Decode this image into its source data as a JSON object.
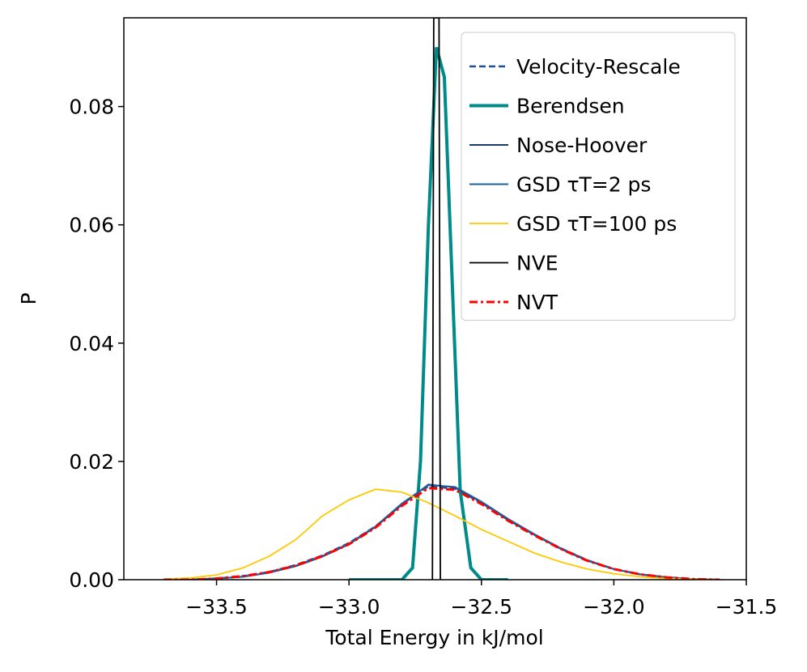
{
  "chart_data": {
    "type": "line",
    "xlabel": "Total Energy in kJ/mol",
    "ylabel": "P",
    "xlim": [
      -33.85,
      -31.5
    ],
    "ylim": [
      0,
      0.095
    ],
    "xticks": [
      {
        "value": -33.5,
        "label": "−33.5"
      },
      {
        "value": -33.0,
        "label": "−33.0"
      },
      {
        "value": -32.5,
        "label": "−32.5"
      },
      {
        "value": -32.0,
        "label": "−32.0"
      },
      {
        "value": -31.5,
        "label": "−31.5"
      }
    ],
    "yticks": [
      {
        "value": 0,
        "label": "0.00"
      },
      0.02,
      0.04,
      0.06,
      0.08
    ],
    "legend": "upper right",
    "series": [
      {
        "name": "Velocity-Rescale",
        "color": "#1f4e9c",
        "dash": "dashed",
        "width": 2.5,
        "x": [
          -33.7,
          -33.6,
          -33.5,
          -33.4,
          -33.3,
          -33.2,
          -33.1,
          -33.0,
          -32.9,
          -32.8,
          -32.7,
          -32.6,
          -32.5,
          -32.4,
          -32.3,
          -32.2,
          -32.1,
          -32.0,
          -31.9,
          -31.8,
          -31.7,
          -31.6
        ],
        "values": [
          0,
          0,
          0.0002,
          0.0006,
          0.0013,
          0.0025,
          0.0041,
          0.0062,
          0.009,
          0.0128,
          0.0158,
          0.0154,
          0.013,
          0.0102,
          0.0076,
          0.0053,
          0.0033,
          0.0018,
          0.0009,
          0.0004,
          0.0001,
          0
        ]
      },
      {
        "name": "Berendsen",
        "color": "#008b8b",
        "dash": "solid",
        "width": 4,
        "x": [
          -33.0,
          -32.8,
          -32.76,
          -32.73,
          -32.7,
          -32.67,
          -32.64,
          -32.61,
          -32.58,
          -32.54,
          -32.5,
          -32.4
        ],
        "values": [
          0,
          0,
          0.002,
          0.02,
          0.06,
          0.09,
          0.085,
          0.05,
          0.015,
          0.002,
          0,
          0
        ]
      },
      {
        "name": "Nose-Hoover",
        "color": "#1a3a6b",
        "dash": "solid",
        "width": 2,
        "x": [
          -33.7,
          -33.6,
          -33.5,
          -33.4,
          -33.3,
          -33.2,
          -33.1,
          -33.0,
          -32.9,
          -32.8,
          -32.7,
          -32.6,
          -32.5,
          -32.4,
          -32.3,
          -32.2,
          -32.1,
          -32.0,
          -31.9,
          -31.8,
          -31.7,
          -31.6
        ],
        "values": [
          0,
          0,
          0.0002,
          0.0005,
          0.0012,
          0.0023,
          0.0039,
          0.006,
          0.0089,
          0.0127,
          0.0161,
          0.0156,
          0.0131,
          0.0101,
          0.0076,
          0.0052,
          0.0032,
          0.0018,
          0.0009,
          0.0004,
          0.0001,
          0
        ]
      },
      {
        "name": "GSD τT=2 ps",
        "color": "#1f5fa0",
        "dash": "solid",
        "width": 2,
        "x": [
          -33.7,
          -33.6,
          -33.5,
          -33.4,
          -33.3,
          -33.2,
          -33.1,
          -33.0,
          -32.9,
          -32.8,
          -32.7,
          -32.6,
          -32.5,
          -32.4,
          -32.3,
          -32.2,
          -32.1,
          -32.0,
          -31.9,
          -31.8,
          -31.7,
          -31.6
        ],
        "values": [
          0,
          0,
          0.0002,
          0.0005,
          0.0012,
          0.0024,
          0.004,
          0.0061,
          0.009,
          0.0129,
          0.016,
          0.0157,
          0.0132,
          0.0103,
          0.0077,
          0.0053,
          0.0033,
          0.0018,
          0.0009,
          0.0004,
          0.0001,
          0
        ]
      },
      {
        "name": "GSD τT=100 ps",
        "color": "#ffc800",
        "dash": "solid",
        "width": 1.8,
        "x": [
          -33.7,
          -33.6,
          -33.5,
          -33.4,
          -33.3,
          -33.2,
          -33.1,
          -33.0,
          -32.9,
          -32.8,
          -32.7,
          -32.6,
          -32.5,
          -32.4,
          -32.3,
          -32.2,
          -32.1,
          -32.0,
          -31.9,
          -31.8,
          -31.7,
          -31.6
        ],
        "values": [
          0.0001,
          0.0003,
          0.0008,
          0.002,
          0.004,
          0.0068,
          0.0108,
          0.0135,
          0.0153,
          0.0148,
          0.013,
          0.0108,
          0.0085,
          0.0065,
          0.0045,
          0.003,
          0.0018,
          0.001,
          0.0005,
          0.0002,
          0.0001,
          0
        ]
      },
      {
        "name": "NVE",
        "color": "#000000",
        "dash": "solid",
        "width": 1.8,
        "x": [
          -32.685,
          -32.68,
          -32.66,
          -32.655
        ],
        "values": [
          0,
          0.095,
          0.095,
          0
        ]
      },
      {
        "name": "NVT",
        "color": "#ff0000",
        "dash": "dashdot",
        "width": 3,
        "x": [
          -33.7,
          -33.6,
          -33.5,
          -33.4,
          -33.3,
          -33.2,
          -33.1,
          -33.0,
          -32.9,
          -32.8,
          -32.7,
          -32.6,
          -32.5,
          -32.4,
          -32.3,
          -32.2,
          -32.1,
          -32.0,
          -31.9,
          -31.8,
          -31.7,
          -31.6
        ],
        "values": [
          0,
          0,
          0.0002,
          0.0006,
          0.0013,
          0.0024,
          0.004,
          0.006,
          0.0088,
          0.0125,
          0.0155,
          0.0152,
          0.0128,
          0.01,
          0.0075,
          0.0052,
          0.0032,
          0.0018,
          0.0009,
          0.0004,
          0.0001,
          0
        ]
      }
    ]
  }
}
